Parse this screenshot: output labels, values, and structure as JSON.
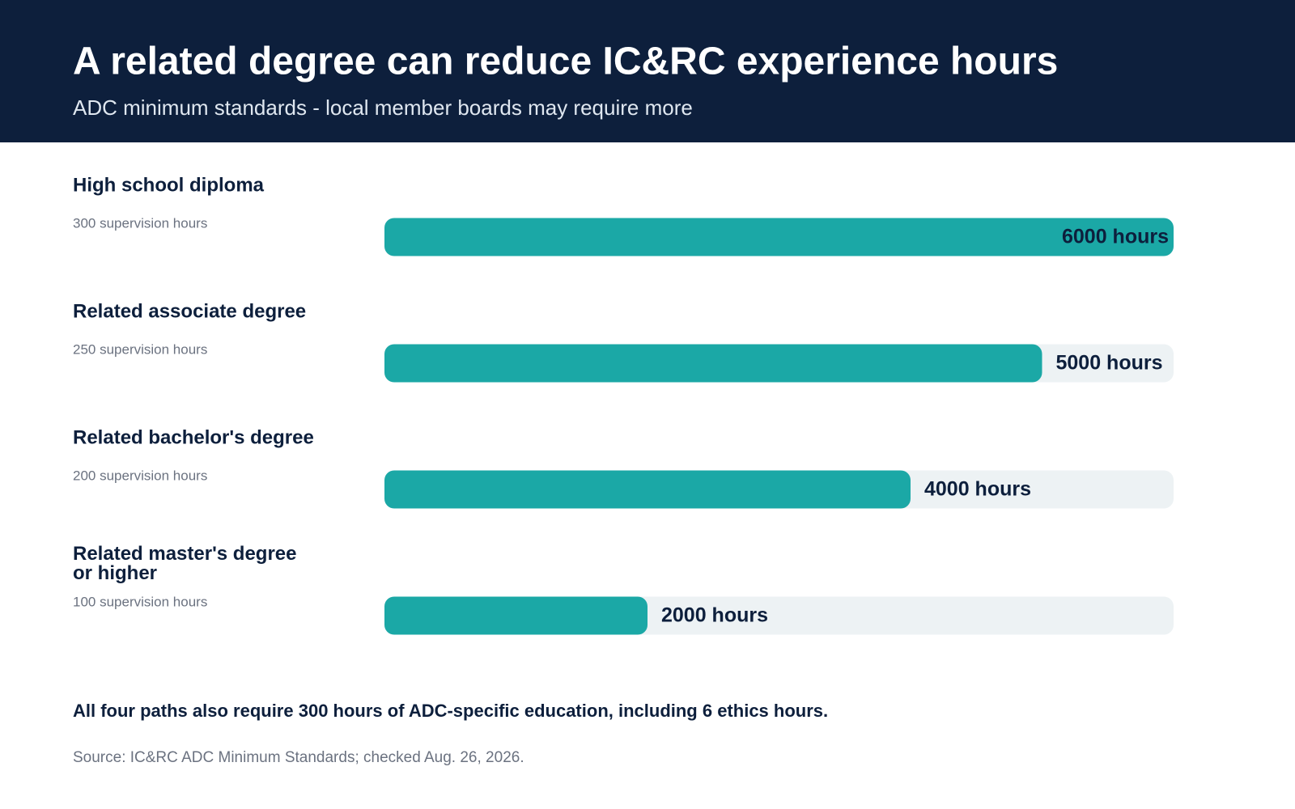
{
  "chart_data": {
    "type": "bar",
    "orientation": "horizontal",
    "title": "A related degree can reduce IC&RC experience hours",
    "subtitle": "ADC minimum standards - local member boards may require more",
    "categories": [
      "High school diploma",
      "Related associate degree",
      "Related bachelor's degree",
      "Related master's degree or higher"
    ],
    "category_notes": [
      "300 supervision hours",
      "250 supervision hours",
      "200 supervision hours",
      "100 supervision hours"
    ],
    "values": [
      6000,
      5000,
      4000,
      2000
    ],
    "value_labels": [
      "6000 hours",
      "5000 hours",
      "4000 hours",
      "2000 hours"
    ],
    "color": "#1ba8a6",
    "track_color": "#edf2f4",
    "footnote": "All four paths also require 300 hours of ADC-specific education, including 6 ethics hours.",
    "source": "Source: IC&RC ADC Minimum Standards; checked Aug. 26, 2026."
  }
}
